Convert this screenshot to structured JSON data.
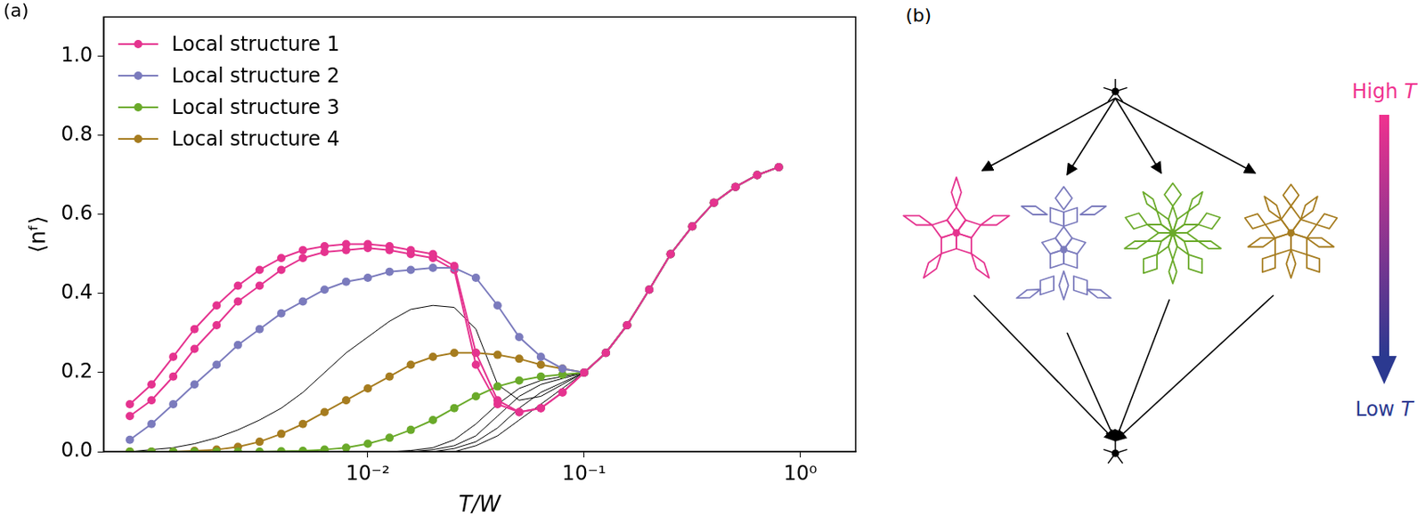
{
  "chart_data": {
    "type": "line",
    "x_label": "T/W",
    "y_label": "⟨nᶠ⟩",
    "log": "x",
    "grid": false,
    "legend": "upper left",
    "xlim": [
      0.0006,
      1.8
    ],
    "xticks": [
      {
        "value": 0.01,
        "label": "10⁻²"
      },
      {
        "value": 0.1,
        "label": "10⁻¹"
      },
      {
        "value": 1,
        "label": "10⁰"
      }
    ],
    "ylim": [
      0,
      1.1
    ],
    "yticks": [
      {
        "value": 0,
        "label": "0.0"
      },
      0.2,
      0.4,
      0.6,
      0.8,
      {
        "value": 1,
        "label": "1.0"
      }
    ],
    "x": [
      0.000794,
      0.001,
      0.00126,
      0.00158,
      0.002,
      0.00251,
      0.00316,
      0.00398,
      0.00501,
      0.00631,
      0.00794,
      0.01,
      0.0126,
      0.0158,
      0.02,
      0.0251,
      0.0316,
      0.0398,
      0.0501,
      0.0631,
      0.0794,
      0.1,
      0.126,
      0.158,
      0.2,
      0.251,
      0.316,
      0.398,
      0.501,
      0.631,
      0.794
    ],
    "series": [
      {
        "name": "Local structure 1",
        "color": "#e5338f",
        "marker": "circle",
        "line_style": "solid",
        "values": [
          0.12,
          0.17,
          0.24,
          0.31,
          0.37,
          0.42,
          0.46,
          0.49,
          0.51,
          0.52,
          0.525,
          0.525,
          0.52,
          0.51,
          0.5,
          0.47,
          0.25,
          0.13,
          0.1,
          0.11,
          0.15,
          0.2,
          0.25,
          0.32,
          0.41,
          0.5,
          0.57,
          0.63,
          0.67,
          0.7,
          0.72
        ]
      },
      {
        "color": "#e5338f",
        "marker": "circle",
        "line_style": "solid",
        "values": [
          0.09,
          0.13,
          0.19,
          0.26,
          0.32,
          0.38,
          0.42,
          0.46,
          0.49,
          0.505,
          0.51,
          0.515,
          0.51,
          0.5,
          0.49,
          0.46,
          0.22,
          0.12,
          0.1,
          0.11,
          0.15,
          0.2,
          0.25,
          0.32,
          0.41,
          0.5,
          0.57,
          0.63,
          0.67,
          0.7,
          0.72
        ]
      },
      {
        "name": "Local structure 2",
        "color": "#7b7bbd",
        "marker": "circle",
        "line_style": "solid",
        "values": [
          0.03,
          0.07,
          0.12,
          0.17,
          0.22,
          0.27,
          0.31,
          0.35,
          0.38,
          0.41,
          0.43,
          0.44,
          0.455,
          0.46,
          0.465,
          0.465,
          0.44,
          0.37,
          0.29,
          0.24,
          0.21,
          0.2,
          0.25,
          0.32,
          0.41,
          0.5,
          0.57,
          0.63,
          0.67,
          0.7,
          0.72
        ]
      },
      {
        "name": "Local structure 3",
        "color": "#6aaa2a",
        "marker": "circle",
        "line_style": "solid",
        "values": [
          0,
          0,
          0,
          0,
          0,
          0,
          0,
          0.001,
          0.002,
          0.005,
          0.01,
          0.02,
          0.035,
          0.055,
          0.08,
          0.11,
          0.14,
          0.165,
          0.18,
          0.19,
          0.195,
          0.2,
          0.25,
          0.32,
          0.41,
          0.5,
          0.57,
          0.63,
          0.67,
          0.7,
          0.72
        ]
      },
      {
        "name": "Local structure 4",
        "color": "#a67c1f",
        "marker": "circle",
        "line_style": "solid",
        "values": [
          0,
          0,
          0,
          0.002,
          0.005,
          0.012,
          0.025,
          0.045,
          0.07,
          0.1,
          0.13,
          0.16,
          0.19,
          0.22,
          0.24,
          0.25,
          0.25,
          0.245,
          0.235,
          0.22,
          0.21,
          0.2,
          0.25,
          0.32,
          0.41,
          0.5,
          0.57,
          0.63,
          0.67,
          0.7,
          0.72
        ]
      },
      {
        "color": "#000000",
        "marker": "none",
        "line_style": "solid",
        "values": [
          0,
          0.005,
          0.01,
          0.02,
          0.035,
          0.055,
          0.08,
          0.11,
          0.15,
          0.2,
          0.25,
          0.29,
          0.33,
          0.36,
          0.37,
          0.365,
          0.31,
          0.17,
          0.13,
          0.14,
          0.17,
          0.2,
          0.25,
          0.32,
          0.41,
          0.5,
          0.57,
          0.63,
          0.67,
          0.7,
          0.72
        ]
      },
      {
        "color": "#000000",
        "marker": "none",
        "line_style": "solid",
        "values": [
          0,
          0,
          0,
          0,
          0,
          0,
          0,
          0,
          0,
          0,
          0,
          0,
          0,
          0.003,
          0.01,
          0.03,
          0.07,
          0.12,
          0.16,
          0.18,
          0.19,
          0.2,
          0.25,
          0.32,
          0.41,
          0.5,
          0.57,
          0.63,
          0.67,
          0.7,
          0.72
        ]
      },
      {
        "color": "#000000",
        "marker": "none",
        "line_style": "solid",
        "values": [
          0,
          0,
          0,
          0,
          0,
          0,
          0,
          0,
          0,
          0,
          0,
          0,
          0,
          0,
          0.005,
          0.015,
          0.04,
          0.09,
          0.14,
          0.17,
          0.185,
          0.2,
          0.25,
          0.32,
          0.41,
          0.5,
          0.57,
          0.63,
          0.67,
          0.7,
          0.72
        ]
      },
      {
        "color": "#000000",
        "marker": "none",
        "line_style": "solid",
        "values": [
          0,
          0,
          0,
          0,
          0,
          0,
          0,
          0,
          0,
          0,
          0,
          0,
          0,
          0,
          0,
          0.008,
          0.025,
          0.06,
          0.11,
          0.15,
          0.175,
          0.2,
          0.25,
          0.32,
          0.41,
          0.5,
          0.57,
          0.63,
          0.67,
          0.7,
          0.72
        ]
      },
      {
        "color": "#000000",
        "marker": "none",
        "line_style": "solid",
        "values": [
          0,
          0,
          0,
          0,
          0,
          0,
          0,
          0,
          0,
          0,
          0,
          0,
          0,
          0,
          0,
          0,
          0.015,
          0.04,
          0.08,
          0.12,
          0.16,
          0.2,
          0.25,
          0.32,
          0.41,
          0.5,
          0.57,
          0.63,
          0.67,
          0.7,
          0.72
        ]
      }
    ]
  },
  "panel_a_label": "(a)",
  "diagram": {
    "panel_label": "(b)",
    "high_label": "High T",
    "low_label": "Low T"
  }
}
